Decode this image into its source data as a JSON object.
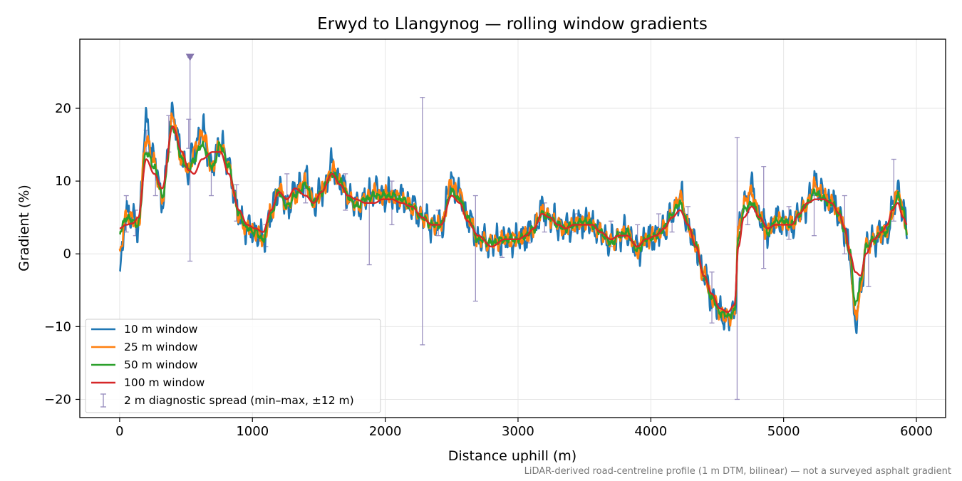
{
  "chart_data": {
    "type": "line",
    "title": "Erwyd to Llangynog — rolling window gradients",
    "xlabel": "Distance uphill (m)",
    "ylabel": "Gradient (%)",
    "xlim": [
      -300,
      6220
    ],
    "ylim": [
      -22.5,
      29.5
    ],
    "xticks": [
      0,
      1000,
      2000,
      3000,
      4000,
      5000,
      6000
    ],
    "xtick_labels": [
      "0",
      "1000",
      "2000",
      "3000",
      "4000",
      "5000",
      "6000"
    ],
    "yticks": [
      -20,
      -10,
      0,
      10,
      20
    ],
    "ytick_labels": [
      "−20",
      "−10",
      "0",
      "10",
      "20"
    ],
    "grid": true,
    "legend_position": "lower-left",
    "footnote": "LiDAR-derived road-centreline profile (1 m DTM, bilinear) — not a surveyed asphalt gradient",
    "anchors": {
      "x": [
        0,
        50,
        100,
        140,
        200,
        260,
        320,
        400,
        470,
        520,
        560,
        620,
        700,
        760,
        820,
        900,
        960,
        1020,
        1080,
        1140,
        1200,
        1260,
        1320,
        1400,
        1460,
        1520,
        1600,
        1660,
        1720,
        1780,
        1850,
        1920,
        1980,
        2050,
        2120,
        2200,
        2280,
        2350,
        2420,
        2500,
        2560,
        2620,
        2700,
        2800,
        2900,
        3000,
        3060,
        3120,
        3180,
        3240,
        3300,
        3360,
        3420,
        3500,
        3560,
        3620,
        3700,
        3760,
        3820,
        3900,
        3960,
        4040,
        4100,
        4160,
        4220,
        4280,
        4340,
        4400,
        4460,
        4520,
        4580,
        4630,
        4660,
        4700,
        4760,
        4820,
        4880,
        4940,
        5000,
        5060,
        5120,
        5180,
        5240,
        5300,
        5360,
        5420,
        5460,
        5500,
        5540,
        5580,
        5620,
        5680,
        5740,
        5780,
        5820,
        5860,
        5900,
        5930
      ]
    },
    "series": [
      {
        "name": "10 m window",
        "color": "#1f77b4",
        "width": 2.6,
        "noise": 2.3,
        "freq": 1.0,
        "values": [
          -3,
          6,
          4.5,
          4,
          18,
          13,
          7.5,
          19.5,
          13,
          11.5,
          14.5,
          17,
          12,
          15.5,
          12,
          5,
          3.5,
          3,
          2,
          5.5,
          9,
          6.5,
          8.5,
          10.5,
          7,
          8.5,
          12,
          10,
          8,
          6.5,
          7.5,
          9,
          8,
          8,
          7.5,
          6.5,
          5,
          4,
          4,
          10,
          8,
          5,
          2,
          1.5,
          2,
          2,
          2.5,
          3.5,
          6,
          5,
          4,
          3.5,
          4,
          4.5,
          4,
          3,
          1.5,
          2.5,
          3,
          0.5,
          2,
          2.5,
          3.5,
          5.5,
          8,
          4,
          1,
          -3,
          -6,
          -8,
          -9,
          -8,
          3,
          7,
          9,
          5,
          3,
          4.5,
          4.5,
          4,
          5.5,
          7,
          10,
          8,
          7,
          5.5,
          3,
          0,
          -10,
          -5,
          1,
          2,
          3,
          3,
          6,
          9,
          6,
          3
        ]
      },
      {
        "name": "25 m window",
        "color": "#ff7f0e",
        "width": 2.6,
        "noise": 1.3,
        "freq": 1.1,
        "values": [
          0,
          5.5,
          4.5,
          4,
          16,
          12.5,
          7.5,
          18.5,
          13,
          11.5,
          14,
          16.5,
          12,
          15,
          12,
          5,
          3.5,
          3,
          2,
          5.5,
          9,
          6.5,
          8,
          10,
          7,
          8.5,
          11.5,
          10,
          8,
          6.5,
          7.5,
          8.5,
          8,
          8,
          7.5,
          6.5,
          5,
          4,
          4,
          9.5,
          8,
          5,
          2,
          1.5,
          2,
          2,
          2.5,
          3.5,
          6,
          5,
          4,
          3.5,
          4,
          4.5,
          4,
          3,
          1.5,
          2.5,
          3,
          0.5,
          2,
          2.5,
          3.5,
          5.5,
          8,
          4,
          1,
          -3,
          -6,
          -8,
          -9,
          -8,
          3,
          7,
          8.5,
          5,
          3,
          4.5,
          4.5,
          4,
          5.5,
          7,
          9.5,
          8,
          7,
          5.5,
          3,
          0,
          -9,
          -5,
          1,
          2,
          3,
          3,
          6,
          8.5,
          6,
          2
        ]
      },
      {
        "name": "50 m window",
        "color": "#2ca02c",
        "width": 2.6,
        "noise": 0.6,
        "freq": 1.2,
        "values": [
          3,
          5,
          4.5,
          4,
          14,
          12,
          8,
          17.5,
          13,
          11.5,
          13,
          15,
          12,
          15,
          12,
          5.5,
          3.5,
          3,
          2,
          5.5,
          8.5,
          6.5,
          8,
          9.5,
          7,
          8.5,
          11,
          10,
          8,
          6.5,
          7.5,
          8,
          8,
          8,
          7.5,
          6.5,
          5,
          4,
          4,
          8.5,
          7.5,
          5,
          2,
          1.5,
          2,
          2,
          2.5,
          3.5,
          5.5,
          5,
          4,
          3.5,
          4,
          4.5,
          4,
          3,
          1.5,
          2.5,
          3,
          0.5,
          2,
          2.5,
          3.5,
          5.5,
          7,
          4,
          1,
          -3,
          -6,
          -8,
          -8.5,
          -8,
          2,
          6,
          7,
          5,
          3,
          4.5,
          4.5,
          4,
          5.5,
          7,
          8.5,
          7.5,
          7,
          5.5,
          3,
          0,
          -7,
          -4,
          1,
          2,
          3,
          3,
          6,
          8,
          6,
          3
        ]
      },
      {
        "name": "100 m window",
        "color": "#d62728",
        "width": 2.4,
        "noise": 0,
        "freq": 1.0,
        "values": [
          3.5,
          4,
          4.2,
          5,
          13,
          11,
          9,
          17.5,
          14,
          11.5,
          11,
          13,
          14,
          14,
          11,
          6,
          4,
          3.5,
          3,
          6,
          8.5,
          7.5,
          9,
          8,
          7,
          8.5,
          11,
          9.5,
          8,
          7.5,
          7,
          7,
          7.5,
          7.5,
          7,
          6.5,
          5,
          4,
          4,
          8,
          7,
          4.5,
          2.5,
          1,
          2,
          2,
          2.5,
          3.5,
          5.5,
          5,
          4,
          3.5,
          4,
          4,
          4,
          3,
          2,
          2.5,
          2.5,
          1,
          2,
          2.5,
          3.5,
          5,
          6,
          4,
          1,
          -3,
          -5.5,
          -7.5,
          -8,
          -7,
          1,
          5,
          6.5,
          5,
          3.5,
          4,
          4,
          4,
          5.5,
          7,
          7.5,
          7.5,
          7,
          5.5,
          3.5,
          0,
          -2.5,
          -3,
          0,
          2,
          3,
          4,
          6,
          7,
          5,
          4
        ]
      }
    ],
    "diagnostic_spread": {
      "name": "2 m diagnostic spread (min–max, ±12 m)",
      "color": "#9b91c0",
      "markers": [
        {
          "x": 50,
          "min": 3,
          "max": 8
        },
        {
          "x": 120,
          "min": 2.5,
          "max": 6
        },
        {
          "x": 200,
          "min": 14,
          "max": 17
        },
        {
          "x": 270,
          "min": 8,
          "max": 11
        },
        {
          "x": 370,
          "min": 14,
          "max": 19
        },
        {
          "x": 520,
          "min": 14.5,
          "max": 18.5
        },
        {
          "x": 530,
          "min": -1,
          "max": 27
        },
        {
          "x": 690,
          "min": 8,
          "max": 12
        },
        {
          "x": 880,
          "min": 4.5,
          "max": 9.5
        },
        {
          "x": 1100,
          "min": 1,
          "max": 4
        },
        {
          "x": 1260,
          "min": 7,
          "max": 11
        },
        {
          "x": 1400,
          "min": 7,
          "max": 9
        },
        {
          "x": 1700,
          "min": 6,
          "max": 11
        },
        {
          "x": 1880,
          "min": -1.5,
          "max": 8
        },
        {
          "x": 2050,
          "min": 4,
          "max": 10
        },
        {
          "x": 2280,
          "min": -12.5,
          "max": 21.5
        },
        {
          "x": 2400,
          "min": 2.5,
          "max": 6
        },
        {
          "x": 2680,
          "min": -6.5,
          "max": 8
        },
        {
          "x": 2880,
          "min": -0.5,
          "max": 3
        },
        {
          "x": 3080,
          "min": 1.5,
          "max": 3.5
        },
        {
          "x": 3200,
          "min": 3,
          "max": 7
        },
        {
          "x": 3430,
          "min": 3,
          "max": 5.5
        },
        {
          "x": 3700,
          "min": 1,
          "max": 4.5
        },
        {
          "x": 3900,
          "min": 0,
          "max": 4
        },
        {
          "x": 4060,
          "min": 3,
          "max": 5.5
        },
        {
          "x": 4160,
          "min": 3,
          "max": 5.5
        },
        {
          "x": 4280,
          "min": 3,
          "max": 6.5
        },
        {
          "x": 4460,
          "min": -9.5,
          "max": -2.5
        },
        {
          "x": 4650,
          "min": -20,
          "max": 16
        },
        {
          "x": 4730,
          "min": 4,
          "max": 8
        },
        {
          "x": 4850,
          "min": -2,
          "max": 12
        },
        {
          "x": 5040,
          "min": 2,
          "max": 6.5
        },
        {
          "x": 5230,
          "min": 2.5,
          "max": 8
        },
        {
          "x": 5460,
          "min": 0,
          "max": 8
        },
        {
          "x": 5640,
          "min": -4.5,
          "max": 1.5
        },
        {
          "x": 5830,
          "min": 4.5,
          "max": 13
        }
      ],
      "off_scale_marker": {
        "x": 530,
        "y": 27,
        "color": "#8475ad"
      }
    }
  }
}
